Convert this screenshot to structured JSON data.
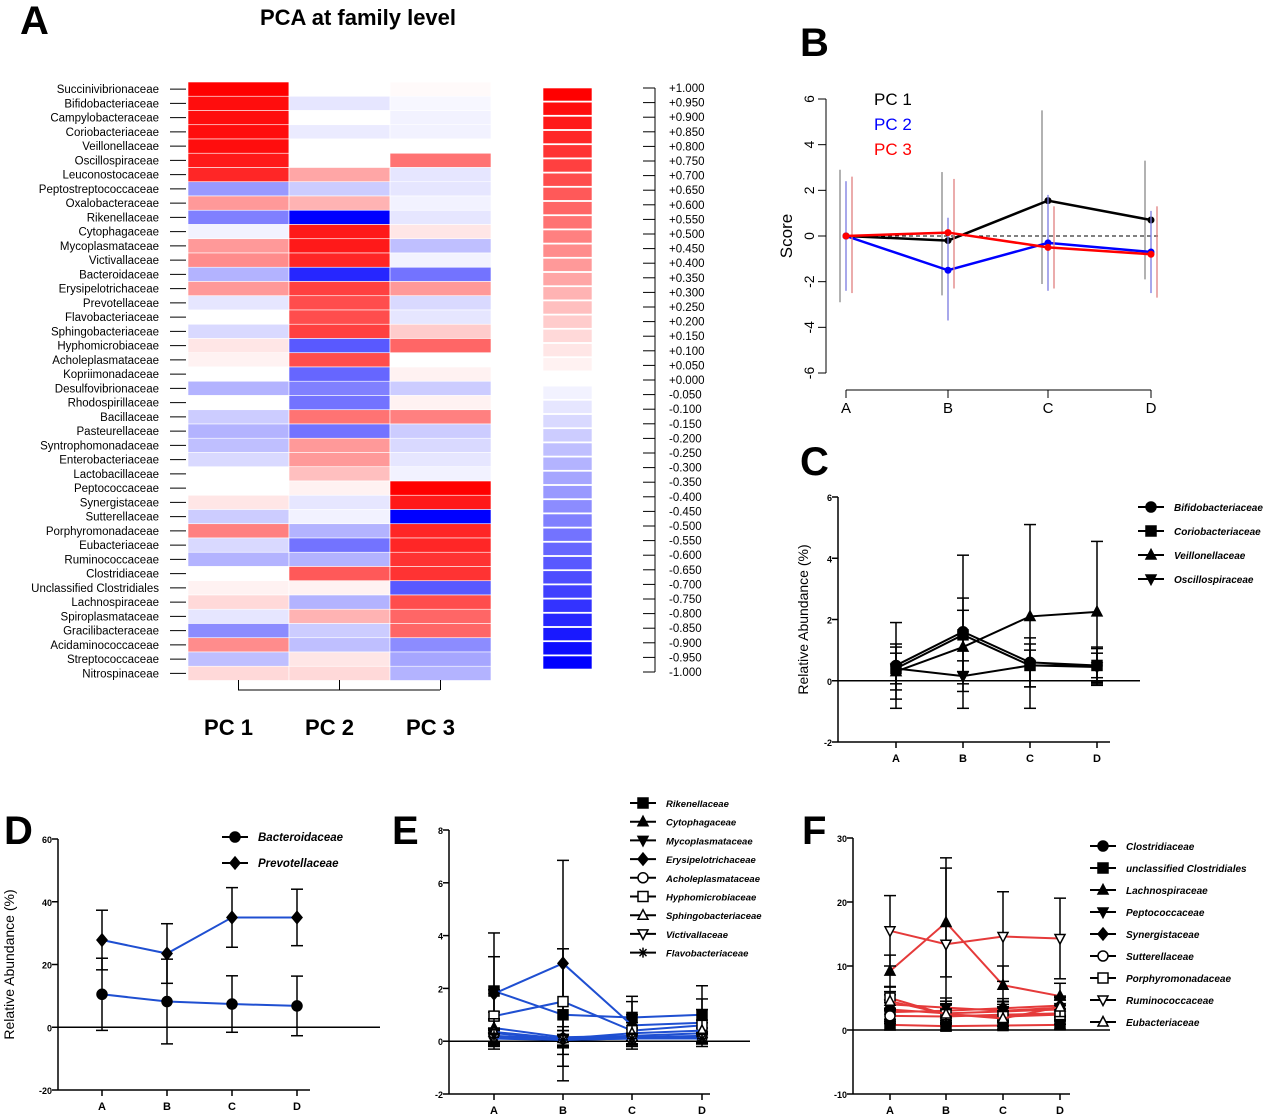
{
  "panels": {
    "A": "A",
    "B": "B",
    "C": "C",
    "D": "D",
    "E": "E",
    "F": "F"
  },
  "colors": {
    "red": "#ff0000",
    "blue": "#0000ff",
    "line_red": "#e53a3a",
    "line_blue": "#1f4fd1",
    "black": "#000000",
    "gray": "#888888"
  },
  "chart_data": [
    {
      "id": "A",
      "type": "heatmap",
      "title": "PCA at family level",
      "columns": [
        "PC 1",
        "PC 2",
        "PC 3"
      ],
      "rows": [
        "Succinivibrionaceae",
        "Bifidobacteriaceae",
        "Campylobacteraceae",
        "Coriobacteriaceae",
        "Veillonellaceae",
        "Oscillospiraceae",
        "Leuconostocaceae",
        "Peptostreptococcaceae",
        "Oxalobacteraceae",
        "Rikenellaceae",
        "Cytophagaceae",
        "Mycoplasmataceae",
        "Victivallaceae",
        "Bacteroidaceae",
        "Erysipelotrichaceae",
        "Prevotellaceae",
        "Flavobacteriaceae",
        "Sphingobacteriaceae",
        "Hyphomicrobiaceae",
        "Acholeplasmataceae",
        "Kopriimonadaceae",
        "Desulfovibrionaceae",
        "Rhodospirillaceae",
        "Bacillaceae",
        "Pasteurellaceae",
        "Syntrophomonadaceae",
        "Enterobacteriaceae",
        "Lactobacillaceae",
        "Peptococcaceae",
        "Synergistaceae",
        "Sutterellaceae",
        "Porphyromonadaceae",
        "Eubacteriaceae",
        "Ruminococcaceae",
        "Clostridiaceae",
        "Unclassified Clostridiales",
        "Lachnospiraceae",
        "Spiroplasmataceae",
        "Gracilibacteraceae",
        "Acidaminococcaceae",
        "Streptococcaceae",
        "Nitrospinaceae"
      ],
      "values": [
        [
          1.0,
          0.0,
          0.02
        ],
        [
          0.95,
          -0.1,
          -0.03
        ],
        [
          0.95,
          0.0,
          -0.05
        ],
        [
          0.95,
          -0.08,
          -0.05
        ],
        [
          0.95,
          0.0,
          0.0
        ],
        [
          0.9,
          0.0,
          0.55
        ],
        [
          0.85,
          0.35,
          -0.1
        ],
        [
          -0.4,
          -0.2,
          -0.1
        ],
        [
          0.4,
          0.3,
          -0.05
        ],
        [
          -0.5,
          -1.0,
          -0.1
        ],
        [
          -0.05,
          0.9,
          0.1
        ],
        [
          0.4,
          0.9,
          -0.25
        ],
        [
          0.45,
          0.85,
          -0.05
        ],
        [
          -0.3,
          -0.85,
          -0.55
        ],
        [
          0.4,
          0.75,
          0.4
        ],
        [
          -0.1,
          0.7,
          -0.15
        ],
        [
          0.0,
          0.7,
          -0.1
        ],
        [
          -0.15,
          0.75,
          0.2
        ],
        [
          0.1,
          -0.65,
          0.6
        ],
        [
          0.05,
          0.7,
          0.0
        ],
        [
          0.0,
          -0.6,
          0.05
        ],
        [
          -0.3,
          -0.5,
          -0.2
        ],
        [
          0.0,
          -0.55,
          0.05
        ],
        [
          -0.2,
          0.55,
          0.5
        ],
        [
          -0.3,
          -0.55,
          -0.2
        ],
        [
          -0.25,
          0.4,
          -0.15
        ],
        [
          -0.15,
          0.4,
          -0.1
        ],
        [
          0.0,
          0.25,
          -0.05
        ],
        [
          0.0,
          0.05,
          1.0
        ],
        [
          0.1,
          -0.1,
          0.9
        ],
        [
          -0.2,
          -0.05,
          -1.0
        ],
        [
          0.5,
          -0.3,
          0.85
        ],
        [
          -0.15,
          -0.55,
          0.85
        ],
        [
          -0.3,
          -0.3,
          0.8
        ],
        [
          0.0,
          0.65,
          0.8
        ],
        [
          0.05,
          0.05,
          -0.65
        ],
        [
          0.15,
          -0.3,
          0.7
        ],
        [
          -0.1,
          0.3,
          0.6
        ],
        [
          -0.45,
          -0.2,
          0.6
        ],
        [
          0.45,
          -0.25,
          -0.45
        ],
        [
          -0.25,
          0.1,
          -0.35
        ],
        [
          0.15,
          0.15,
          -0.3
        ]
      ],
      "colorbar_ticks": [
        "+1.000",
        "+0.950",
        "+0.900",
        "+0.850",
        "+0.800",
        "+0.750",
        "+0.700",
        "+0.650",
        "+0.600",
        "+0.550",
        "+0.500",
        "+0.450",
        "+0.400",
        "+0.350",
        "+0.300",
        "+0.250",
        "+0.200",
        "+0.150",
        "+0.100",
        "+0.050",
        "+0.000",
        "-0.050",
        "-0.100",
        "-0.150",
        "-0.200",
        "-0.250",
        "-0.300",
        "-0.350",
        "-0.400",
        "-0.450",
        "-0.500",
        "-0.550",
        "-0.600",
        "-0.650",
        "-0.700",
        "-0.750",
        "-0.800",
        "-0.850",
        "-0.900",
        "-0.950",
        "-1.000"
      ],
      "colorscale": [
        "#0000ff",
        "#ffffff",
        "#ff0000"
      ]
    },
    {
      "id": "B",
      "type": "line",
      "categories": [
        "A",
        "B",
        "C",
        "D"
      ],
      "ylabel": "Score",
      "ylim": [
        -6,
        6
      ],
      "yticks": [
        "6",
        "4",
        "2",
        "0",
        "-2",
        "-4",
        "-6"
      ],
      "series": [
        {
          "name": "PC 1",
          "color": "#000000",
          "values": [
            0,
            -0.2,
            1.55,
            0.7
          ],
          "err_low": [
            -2.9,
            -2.6,
            -2.1,
            -1.9
          ],
          "err_high": [
            2.9,
            2.8,
            5.5,
            3.3
          ]
        },
        {
          "name": "PC 2",
          "color": "#0000ff",
          "values": [
            0,
            -1.5,
            -0.3,
            -0.7
          ],
          "err_low": [
            -2.4,
            -3.7,
            -2.4,
            -2.5
          ],
          "err_high": [
            2.4,
            0.8,
            1.8,
            1.1
          ]
        },
        {
          "name": "PC 3",
          "color": "#ff0000",
          "values": [
            0,
            0.15,
            -0.5,
            -0.8
          ],
          "err_low": [
            -2.5,
            -2.3,
            -2.3,
            -2.7
          ],
          "err_high": [
            2.6,
            2.5,
            1.3,
            1.3
          ]
        }
      ]
    },
    {
      "id": "C",
      "type": "line",
      "categories": [
        "A",
        "B",
        "C",
        "D"
      ],
      "ylabel": "Relative Abundance (%)",
      "ylim": [
        -2,
        6
      ],
      "yticks": [
        "6",
        "4",
        "2",
        "0",
        "-2"
      ],
      "series": [
        {
          "name": "Bifidobacteriaceae",
          "marker": "circle",
          "values": [
            0.5,
            1.6,
            0.6,
            0.5
          ],
          "err": [
            1.4,
            2.5,
            0.8,
            0.6
          ]
        },
        {
          "name": "Coriobacteriaceae",
          "marker": "square",
          "values": [
            0.4,
            1.5,
            0.5,
            0.5
          ],
          "err": [
            0.5,
            1.2,
            0.5,
            0.4
          ]
        },
        {
          "name": "Veillonellaceae",
          "marker": "triangle",
          "values": [
            0.3,
            1.1,
            2.1,
            2.25
          ],
          "err": [
            0.9,
            1.2,
            3.0,
            2.3
          ]
        },
        {
          "name": "Oscillospiraceae",
          "marker": "triangle-down",
          "values": [
            0.4,
            0.15,
            0.5,
            0.45
          ],
          "err": [
            0.7,
            0.5,
            0.7,
            0.6
          ]
        }
      ]
    },
    {
      "id": "D",
      "type": "line",
      "categories": [
        "A",
        "B",
        "C",
        "D"
      ],
      "ylabel": "Relative Abundance (%)",
      "ylim": [
        -20,
        60
      ],
      "yticks": [
        "60",
        "40",
        "20",
        "0",
        "-20"
      ],
      "series": [
        {
          "name": "Bacteroidaceae",
          "marker": "circle",
          "values": [
            10.5,
            8.2,
            7.4,
            6.8
          ],
          "err": [
            11.5,
            13.5,
            9.0,
            9.5
          ]
        },
        {
          "name": "Prevotellaceae",
          "marker": "diamond",
          "values": [
            27.8,
            23.5,
            35.0,
            35.0
          ],
          "err": [
            9.5,
            9.5,
            9.5,
            9.0
          ]
        }
      ]
    },
    {
      "id": "E",
      "type": "line",
      "categories": [
        "A",
        "B",
        "C",
        "D"
      ],
      "ylim": [
        -2,
        8
      ],
      "yticks": [
        "8",
        "6",
        "4",
        "2",
        "0",
        "-2"
      ],
      "series": [
        {
          "name": "Rikenellaceae",
          "marker": "square",
          "values": [
            1.9,
            1.0,
            0.9,
            1.0
          ],
          "err": [
            2.2,
            2.5,
            0.8,
            1.1
          ]
        },
        {
          "name": "Cytophagaceae",
          "marker": "triangle",
          "values": [
            0.5,
            0.15,
            0.2,
            0.3
          ],
          "err": [
            0.6,
            0.4,
            0.3,
            0.4
          ]
        },
        {
          "name": "Mycoplasmataceae",
          "marker": "triangle-down",
          "values": [
            0.3,
            0.1,
            0.15,
            0.2
          ],
          "err": [
            0.5,
            0.3,
            0.3,
            0.3
          ]
        },
        {
          "name": "Erysipelotrichaceae",
          "marker": "diamond",
          "values": [
            1.8,
            2.95,
            0.6,
            0.7
          ],
          "err": [
            1.4,
            3.9,
            0.9,
            0.9
          ]
        },
        {
          "name": "Acholeplasmataceae",
          "marker": "circle-open",
          "values": [
            0.2,
            0.1,
            0.1,
            0.15
          ],
          "err": [
            0.3,
            0.3,
            0.2,
            0.2
          ]
        },
        {
          "name": "Hyphomicrobiaceae",
          "marker": "square-open",
          "values": [
            0.95,
            1.5,
            0.4,
            0.6
          ],
          "err": [
            1.0,
            2.0,
            0.6,
            0.6
          ]
        },
        {
          "name": "Sphingobacteriaceae",
          "marker": "triangle-open",
          "values": [
            0.35,
            0.1,
            0.3,
            0.4
          ],
          "err": [
            0.5,
            0.3,
            0.4,
            0.4
          ]
        },
        {
          "name": "Victivallaceae",
          "marker": "triangle-down-open",
          "values": [
            0.1,
            0.05,
            0.1,
            0.1
          ],
          "err": [
            0.2,
            0.2,
            0.2,
            0.2
          ]
        },
        {
          "name": "Flavobacteriaceae",
          "marker": "star",
          "values": [
            0.15,
            0.05,
            0.1,
            0.1
          ],
          "err": [
            0.3,
            0.2,
            0.2,
            0.2
          ]
        }
      ]
    },
    {
      "id": "F",
      "type": "line",
      "categories": [
        "A",
        "B",
        "C",
        "D"
      ],
      "ylim": [
        -10,
        30
      ],
      "yticks": [
        "30",
        "20",
        "10",
        "0",
        "-10"
      ],
      "series": [
        {
          "name": "Clostridiaceae",
          "marker": "circle",
          "values": [
            3.2,
            2.6,
            2.9,
            3.2
          ],
          "err": [
            1.5,
            1.5,
            1.5,
            1.5
          ]
        },
        {
          "name": "unclassified Clostridiales",
          "marker": "square",
          "values": [
            0.8,
            0.6,
            0.7,
            0.8
          ],
          "err": [
            0.8,
            0.6,
            0.6,
            0.7
          ]
        },
        {
          "name": "Lachnospiraceae",
          "marker": "triangle",
          "values": [
            9.2,
            16.8,
            7.0,
            5.3
          ],
          "err": [
            2.5,
            8.5,
            3.0,
            2.0
          ]
        },
        {
          "name": "Peptococcaceae",
          "marker": "triangle-down",
          "values": [
            4.0,
            3.5,
            3.0,
            3.5
          ],
          "err": [
            1.5,
            1.5,
            1.5,
            1.5
          ]
        },
        {
          "name": "Synergistaceae",
          "marker": "diamond",
          "values": [
            2.8,
            3.0,
            3.4,
            3.8
          ],
          "err": [
            1.5,
            1.5,
            1.5,
            1.5
          ]
        },
        {
          "name": "Sutterellaceae",
          "marker": "circle-open",
          "values": [
            2.2,
            2.1,
            2.4,
            2.6
          ],
          "err": [
            1.2,
            1.2,
            1.2,
            1.2
          ]
        },
        {
          "name": "Porphyromonadaceae",
          "marker": "square-open",
          "values": [
            5.0,
            2.4,
            2.1,
            2.4
          ],
          "err": [
            1.8,
            1.5,
            1.5,
            1.5
          ]
        },
        {
          "name": "Ruminococcaceae",
          "marker": "triangle-down-open",
          "values": [
            15.5,
            13.4,
            14.6,
            14.3
          ],
          "err": [
            5.5,
            13.5,
            7.0,
            6.3
          ]
        },
        {
          "name": "Eubacteriaceae",
          "marker": "triangle-open",
          "values": [
            4.5,
            2.5,
            1.8,
            3.6
          ],
          "err": [
            1.5,
            1.5,
            1.2,
            1.5
          ]
        }
      ]
    }
  ]
}
